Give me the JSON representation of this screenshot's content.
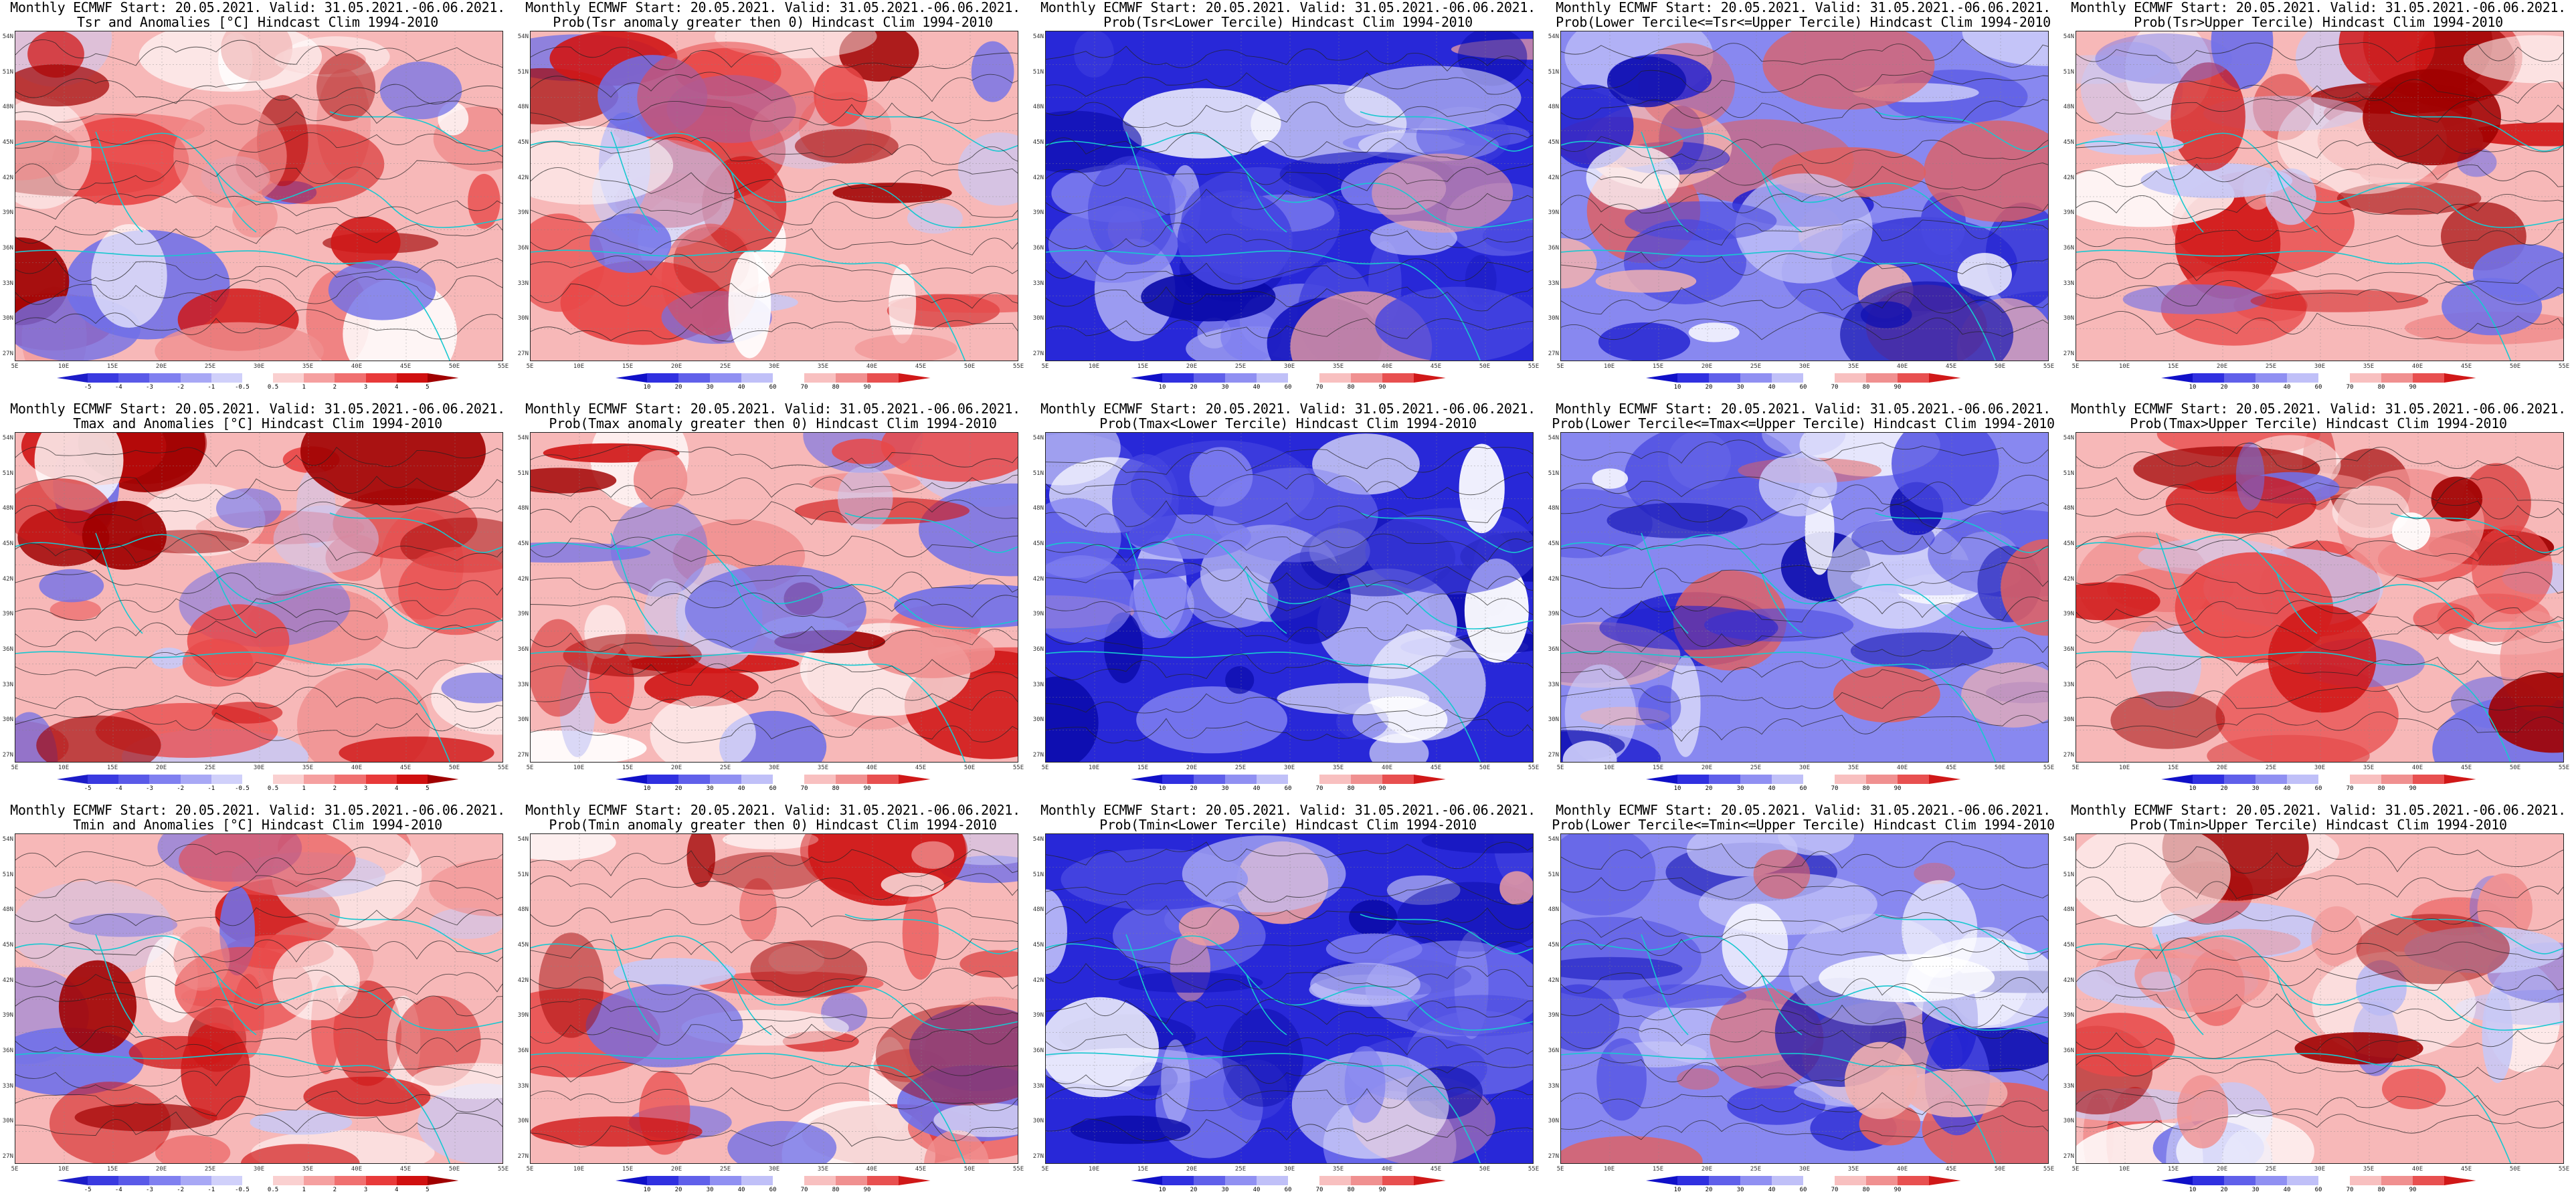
{
  "titles": {
    "line1": "Monthly ECMWF Start: 20.05.2021. Valid: 31.05.2021.-06.06.2021.",
    "clim": "Hindcast Clim 1994-2010"
  },
  "lat_ticks": [
    "54N",
    "51N",
    "48N",
    "45N",
    "42N",
    "39N",
    "36N",
    "33N",
    "30N",
    "27N"
  ],
  "lon_ticks": [
    "5E",
    "10E",
    "15E",
    "20E",
    "25E",
    "30E",
    "35E",
    "40E",
    "45E",
    "50E",
    "55E"
  ],
  "colorbars": {
    "anomaly": {
      "labels": [
        "-5",
        "-4",
        "-3",
        "-2",
        "-1",
        "-0.5",
        "0.5",
        "1",
        "2",
        "3",
        "4",
        "5"
      ],
      "colors": [
        "#1c1cc8",
        "#3a3ae0",
        "#5a5ae8",
        "#8080f0",
        "#a8a8f5",
        "#d0d0fa",
        "#ffffff",
        "#fad0d0",
        "#f5a0a0",
        "#f07070",
        "#e83a3a",
        "#d01010",
        "#a00000"
      ]
    },
    "prob": {
      "labels": [
        "10",
        "20",
        "30",
        "40",
        "60",
        "70",
        "80",
        "90"
      ],
      "colors": [
        "#1010c8",
        "#3030e0",
        "#6060ea",
        "#9090f2",
        "#c0c0f8",
        "#ffffff",
        "#f8c0c0",
        "#f09090",
        "#e85050",
        "#d01818"
      ]
    }
  },
  "panels": [
    {
      "line2": "Tsr and Anomalies [°C] Hindcast Clim 1994-2010",
      "theme": "red",
      "bar": "anomaly"
    },
    {
      "line2": "Prob(Tsr anomaly greater then 0) Hindcast Clim 1994-2010",
      "theme": "red",
      "bar": "prob"
    },
    {
      "line2": "Prob(Tsr<Lower Tercile) Hindcast Clim 1994-2010",
      "theme": "blue",
      "bar": "prob"
    },
    {
      "line2": "Prob(Lower Tercile<=Tsr<=Upper Tercile) Hindcast Clim 1994-2010",
      "theme": "mixed",
      "bar": "prob"
    },
    {
      "line2": "Prob(Tsr>Upper Tercile) Hindcast Clim 1994-2010",
      "theme": "red",
      "bar": "prob"
    },
    {
      "line2": "Tmax and Anomalies [°C] Hindcast Clim 1994-2010",
      "theme": "red",
      "bar": "anomaly"
    },
    {
      "line2": "Prob(Tmax anomaly greater then 0) Hindcast Clim 1994-2010",
      "theme": "red",
      "bar": "prob"
    },
    {
      "line2": "Prob(Tmax<Lower Tercile) Hindcast Clim 1994-2010",
      "theme": "blue",
      "bar": "prob"
    },
    {
      "line2": "Prob(Lower Tercile<=Tmax<=Upper Tercile) Hindcast Clim 1994-2010",
      "theme": "mixed",
      "bar": "prob"
    },
    {
      "line2": "Prob(Tmax>Upper Tercile) Hindcast Clim 1994-2010",
      "theme": "red",
      "bar": "prob"
    },
    {
      "line2": "Tmin and Anomalies [°C] Hindcast Clim 1994-2010",
      "theme": "red",
      "bar": "anomaly"
    },
    {
      "line2": "Prob(Tmin anomaly greater then 0) Hindcast Clim 1994-2010",
      "theme": "red",
      "bar": "prob"
    },
    {
      "line2": "Prob(Tmin<Lower Tercile) Hindcast Clim 1994-2010",
      "theme": "blue",
      "bar": "prob"
    },
    {
      "line2": "Prob(Lower Tercile<=Tmin<=Upper Tercile) Hindcast Clim 1994-2010",
      "theme": "mixed",
      "bar": "prob"
    },
    {
      "line2": "Prob(Tmin>Upper Tercile) Hindcast Clim 1994-2010",
      "theme": "red",
      "bar": "prob"
    }
  ]
}
